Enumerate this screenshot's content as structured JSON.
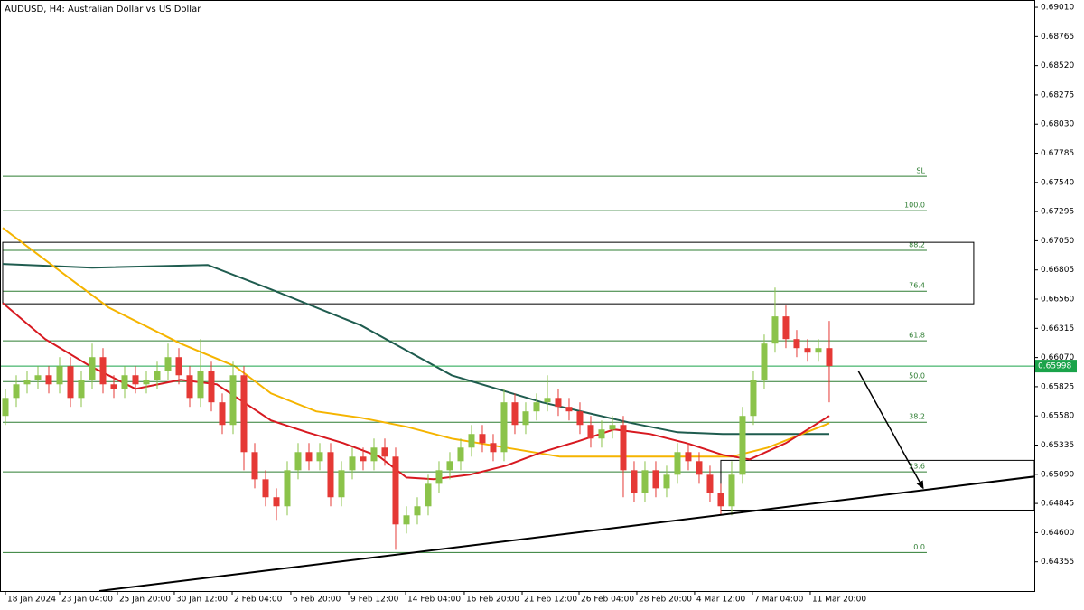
{
  "chart_data": {
    "type": "candlestick",
    "title": "AUDUSD, H4:  Australian Dollar vs US Dollar",
    "xlim": [
      -0.5,
      94.92
    ],
    "ylim": [
      0.6411,
      0.69071
    ],
    "xticks": [
      {
        "value": 0,
        "label": "18 Jan 2024"
      },
      {
        "value": 5,
        "label": "23 Jan 04:00"
      },
      {
        "value": 10.33,
        "label": "25 Jan 20:00"
      },
      {
        "value": 15.58,
        "label": "30 Jan 12:00"
      },
      {
        "value": 20.92,
        "label": "2 Feb 04:00"
      },
      {
        "value": 26.33,
        "label": "6 Feb 20:00"
      },
      {
        "value": 31.67,
        "label": "9 Feb 12:00"
      },
      {
        "value": 36.92,
        "label": "14 Feb 04:00"
      },
      {
        "value": 42.33,
        "label": "16 Feb 20:00"
      },
      {
        "value": 47.67,
        "label": "21 Feb 12:00"
      },
      {
        "value": 52.92,
        "label": "26 Feb 04:00"
      },
      {
        "value": 58.25,
        "label": "28 Feb 20:00"
      },
      {
        "value": 63.58,
        "label": "4 Mar 12:00"
      },
      {
        "value": 68.92,
        "label": "7 Mar 04:00"
      },
      {
        "value": 74.25,
        "label": "11 Mar 20:00"
      }
    ],
    "yticks": [
      {
        "value": 0.6901,
        "label": "0.69010"
      },
      0.68765,
      {
        "value": 0.6852,
        "label": "0.68520"
      },
      0.68275,
      {
        "value": 0.6803,
        "label": "0.68030"
      },
      0.67785,
      {
        "value": 0.6754,
        "label": "0.67540"
      },
      0.67295,
      {
        "value": 0.6705,
        "label": "0.67050"
      },
      0.66805,
      {
        "value": 0.6656,
        "label": "0.66560"
      },
      0.66315,
      {
        "value": 0.6607,
        "label": "0.66070"
      },
      0.65825,
      {
        "value": 0.6558,
        "label": "0.65580"
      },
      0.65335,
      {
        "value": 0.6509,
        "label": "0.65090"
      },
      0.64845,
      {
        "value": 0.646,
        "label": "0.64600"
      },
      0.64355
    ],
    "open": [
      0.6558,
      0.65731,
      0.65845,
      0.65883,
      0.65921,
      0.65845,
      0.65997,
      0.65731,
      0.65883,
      0.66073,
      0.65845,
      0.65807,
      0.65921,
      0.65845,
      0.65883,
      0.65959,
      0.66073,
      0.65921,
      0.65731,
      0.65959,
      0.65694,
      0.65504,
      0.65921,
      0.65276,
      0.65048,
      0.64897,
      0.64821,
      0.65124,
      0.65276,
      0.652,
      0.65276,
      0.64897,
      0.65124,
      0.65238,
      0.652,
      0.65314,
      0.65238,
      0.64669,
      0.64745,
      0.64821,
      0.6501,
      0.65124,
      0.652,
      0.65314,
      0.65428,
      0.65352,
      0.65276,
      0.65694,
      0.65504,
      0.65618,
      0.65694,
      0.65731,
      0.65656,
      0.65618,
      0.65504,
      0.6539,
      0.65466,
      0.65504,
      0.65124,
      0.64935,
      0.65124,
      0.64972,
      0.65086,
      0.65276,
      0.652,
      0.65086,
      0.64935,
      0.64821,
      0.65086,
      0.6558,
      0.65883,
      0.66187,
      0.66415,
      0.66225,
      0.66149,
      0.66111,
      0.66149
    ],
    "high": [
      0.65807,
      0.65921,
      0.65959,
      0.65997,
      0.65997,
      0.66073,
      0.66073,
      0.65959,
      0.66187,
      0.66149,
      0.65921,
      0.65997,
      0.65997,
      0.65959,
      0.66035,
      0.66187,
      0.66149,
      0.65997,
      0.66225,
      0.66035,
      0.65769,
      0.66035,
      0.65997,
      0.65352,
      0.65124,
      0.64972,
      0.652,
      0.65352,
      0.65352,
      0.65352,
      0.65352,
      0.652,
      0.65314,
      0.65314,
      0.6539,
      0.6539,
      0.65314,
      0.64821,
      0.64897,
      0.65086,
      0.652,
      0.65276,
      0.6539,
      0.65504,
      0.65504,
      0.65428,
      0.65807,
      0.65769,
      0.65694,
      0.65769,
      0.65921,
      0.65807,
      0.65731,
      0.65694,
      0.6558,
      0.65542,
      0.6558,
      0.6558,
      0.652,
      0.652,
      0.652,
      0.65162,
      0.65352,
      0.65352,
      0.65276,
      0.65162,
      0.6501,
      0.652,
      0.65656,
      0.65959,
      0.66263,
      0.66657,
      0.66506,
      0.66301,
      0.66225,
      0.66225,
      0.66377
    ],
    "low": [
      0.65504,
      0.65656,
      0.65769,
      0.65807,
      0.65769,
      0.65769,
      0.65656,
      0.65656,
      0.65807,
      0.65769,
      0.65731,
      0.65731,
      0.65769,
      0.65769,
      0.65807,
      0.65883,
      0.65845,
      0.65656,
      0.65656,
      0.65618,
      0.65428,
      0.65428,
      0.65124,
      0.64972,
      0.64821,
      0.64707,
      0.64745,
      0.65048,
      0.65124,
      0.65124,
      0.64821,
      0.64821,
      0.65048,
      0.65124,
      0.65124,
      0.65162,
      0.64456,
      0.64593,
      0.64669,
      0.64745,
      0.64935,
      0.65048,
      0.65124,
      0.65238,
      0.65276,
      0.652,
      0.652,
      0.65428,
      0.65428,
      0.65542,
      0.65618,
      0.6558,
      0.65542,
      0.65428,
      0.65314,
      0.65314,
      0.6539,
      0.64897,
      0.64859,
      0.64859,
      0.64897,
      0.64897,
      0.6501,
      0.65124,
      0.6501,
      0.64859,
      0.64745,
      0.64745,
      0.6501,
      0.65504,
      0.65807,
      0.66111,
      0.66149,
      0.66073,
      0.66035,
      0.66035,
      0.65694
    ],
    "close": [
      0.65731,
      0.65845,
      0.65883,
      0.65921,
      0.65845,
      0.65997,
      0.65731,
      0.65883,
      0.66073,
      0.65845,
      0.65807,
      0.65921,
      0.65845,
      0.65883,
      0.65959,
      0.66073,
      0.65921,
      0.65731,
      0.65959,
      0.65694,
      0.65504,
      0.65921,
      0.65276,
      0.65048,
      0.64897,
      0.64821,
      0.65124,
      0.65276,
      0.652,
      0.65276,
      0.64897,
      0.65124,
      0.65238,
      0.652,
      0.65314,
      0.65238,
      0.64669,
      0.64745,
      0.64821,
      0.6501,
      0.65124,
      0.652,
      0.65314,
      0.65428,
      0.65352,
      0.65276,
      0.65694,
      0.65504,
      0.65618,
      0.65694,
      0.65731,
      0.65656,
      0.65618,
      0.65504,
      0.6539,
      0.65466,
      0.65504,
      0.65124,
      0.64935,
      0.65124,
      0.64972,
      0.65086,
      0.65276,
      0.652,
      0.65086,
      0.64935,
      0.64821,
      0.65086,
      0.6558,
      0.65883,
      0.66187,
      0.66415,
      0.66225,
      0.66149,
      0.66111,
      0.66149,
      0.65998
    ],
    "colors": {
      "up": "#8bc34a",
      "down": "#e53935"
    },
    "moving_averages": [
      {
        "color": "#1f5c4f",
        "x": [
          -0.25,
          8,
          18.67,
          24.5,
          32.83,
          41.17,
          49.5,
          57.83,
          62,
          66.17,
          76
        ],
        "values": [
          0.66855,
          0.66824,
          0.66847,
          0.66642,
          0.66339,
          0.65921,
          0.65694,
          0.65519,
          0.65443,
          0.65428,
          0.65428
        ]
      },
      {
        "color": "#f5b400",
        "x": [
          -0.25,
          4.5,
          9.5,
          16.17,
          21.17,
          24.5,
          28.67,
          32.83,
          37,
          41.17,
          46.17,
          51.17,
          57.83,
          62.83,
          67,
          70.33,
          76
        ],
        "values": [
          0.67158,
          0.66832,
          0.66491,
          0.66187,
          0.65997,
          0.65769,
          0.65618,
          0.65564,
          0.65489,
          0.6539,
          0.65314,
          0.65238,
          0.65238,
          0.65238,
          0.65238,
          0.65314,
          0.65519
        ]
      },
      {
        "color": "#d71920",
        "x": [
          -0.25,
          3.67,
          7.83,
          12,
          16.17,
          19.5,
          22,
          24.5,
          27.83,
          31.17,
          34.5,
          37,
          39.5,
          42.83,
          46.17,
          49.5,
          52.83,
          56.17,
          59.5,
          62.83,
          66.17,
          68.67,
          72,
          76
        ],
        "values": [
          0.66528,
          0.66225,
          0.65997,
          0.65807,
          0.65883,
          0.65845,
          0.65694,
          0.65542,
          0.65443,
          0.65352,
          0.65238,
          0.65063,
          0.65048,
          0.65086,
          0.65162,
          0.65276,
          0.65367,
          0.65466,
          0.65428,
          0.65352,
          0.65253,
          0.65215,
          0.65352,
          0.6558
        ]
      }
    ],
    "fib_color": "#2e7d32",
    "fib_x": [
      -0.25,
      85
    ],
    "fib_levels": [
      {
        "label": "SL",
        "value": 0.67591
      },
      {
        "label": "100.0",
        "value": 0.67303
      },
      {
        "label": "88.2",
        "value": 0.6697
      },
      {
        "label": "76.4",
        "value": 0.66627
      },
      {
        "label": "61.8",
        "value": 0.6621
      },
      {
        "label": "50.0",
        "value": 0.65868
      },
      {
        "label": "38.2",
        "value": 0.65527
      },
      {
        "label": "23.6",
        "value": 0.6511
      },
      {
        "label": "0.0",
        "value": 0.64433
      }
    ],
    "zone": {
      "x": [
        -0.25,
        89.33
      ],
      "y": [
        0.67037,
        0.66521
      ]
    },
    "box": {
      "x": [
        66,
        94.92
      ],
      "y": [
        0.65207,
        0.64789
      ]
    },
    "trendline": {
      "x": [
        8.67,
        94.92
      ],
      "y": [
        0.6411,
        0.65071
      ]
    },
    "arrow": {
      "x": [
        78.67,
        84.67
      ],
      "y": [
        0.65959,
        0.64972
      ]
    },
    "last_price": 0.65998,
    "last_price_color": "#1aa34a"
  }
}
